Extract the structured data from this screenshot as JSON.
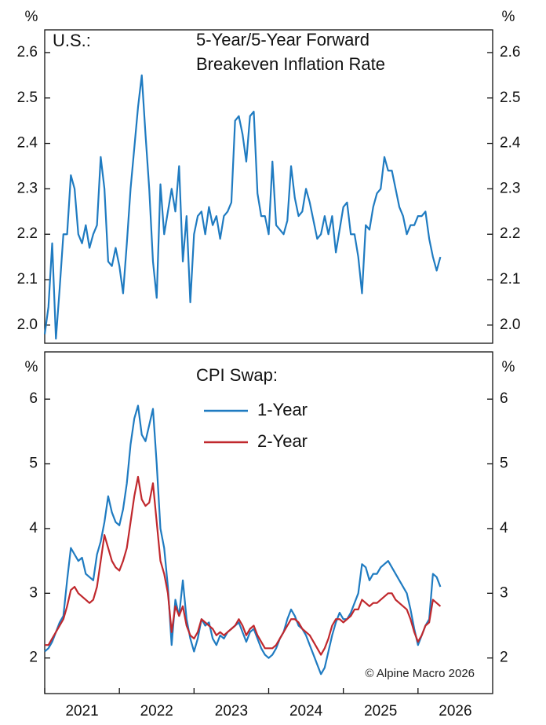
{
  "chart_data": [
    {
      "type": "line",
      "label": "U.S.:",
      "title": [
        "5-Year/5-Year Forward",
        "Breakeven Inflation Rate"
      ],
      "ylabel": "%",
      "y2label": "%",
      "xlim": [
        2021,
        2027
      ],
      "ylim": [
        1.96,
        2.65
      ],
      "yticks": [
        {
          "value": 2,
          "label": "2.0"
        },
        2.1,
        2.2,
        2.3,
        2.4,
        2.5,
        2.6
      ],
      "grid": false,
      "x": [
        2021,
        2021.05,
        2021.1,
        2021.15,
        2021.2,
        2021.25,
        2021.3,
        2021.35,
        2021.4,
        2021.45,
        2021.5,
        2021.55,
        2021.6,
        2021.65,
        2021.7,
        2021.75,
        2021.8,
        2021.85,
        2021.9,
        2021.95,
        2022,
        2022.05,
        2022.1,
        2022.15,
        2022.2,
        2022.25,
        2022.3,
        2022.35,
        2022.4,
        2022.45,
        2022.5,
        2022.55,
        2022.6,
        2022.65,
        2022.7,
        2022.75,
        2022.8,
        2022.85,
        2022.9,
        2022.95,
        2023,
        2023.05,
        2023.1,
        2023.15,
        2023.2,
        2023.25,
        2023.3,
        2023.35,
        2023.4,
        2023.45,
        2023.5,
        2023.55,
        2023.6,
        2023.65,
        2023.7,
        2023.75,
        2023.8,
        2023.85,
        2023.9,
        2023.95,
        2024,
        2024.05,
        2024.1,
        2024.15,
        2024.2,
        2024.25,
        2024.3,
        2024.35,
        2024.4,
        2024.45,
        2024.5,
        2024.55,
        2024.6,
        2024.65,
        2024.7,
        2024.75,
        2024.8,
        2024.85,
        2024.9,
        2024.95,
        2025,
        2025.05,
        2025.1,
        2025.15,
        2025.2,
        2025.25,
        2025.3,
        2025.35,
        2025.4,
        2025.45,
        2025.5,
        2025.55,
        2025.6,
        2025.65,
        2025.7,
        2025.75,
        2025.8,
        2025.85,
        2025.9,
        2025.95,
        2026,
        2026.05,
        2026.1,
        2026.15,
        2026.2,
        2026.25,
        2026.3
      ],
      "series": [
        {
          "name": "5-Year/5-Year Forward Breakeven Inflation Rate",
          "color": "#1f7bc1",
          "values": [
            1.98,
            2.04,
            2.18,
            1.97,
            2.08,
            2.2,
            2.2,
            2.33,
            2.3,
            2.2,
            2.18,
            2.22,
            2.17,
            2.2,
            2.22,
            2.37,
            2.3,
            2.14,
            2.13,
            2.17,
            2.13,
            2.07,
            2.18,
            2.3,
            2.39,
            2.48,
            2.55,
            2.42,
            2.3,
            2.14,
            2.06,
            2.31,
            2.2,
            2.25,
            2.3,
            2.25,
            2.35,
            2.14,
            2.24,
            2.05,
            2.2,
            2.24,
            2.25,
            2.2,
            2.26,
            2.22,
            2.24,
            2.19,
            2.24,
            2.25,
            2.27,
            2.45,
            2.46,
            2.42,
            2.36,
            2.46,
            2.47,
            2.29,
            2.24,
            2.24,
            2.2,
            2.36,
            2.22,
            2.21,
            2.2,
            2.23,
            2.35,
            2.28,
            2.24,
            2.25,
            2.3,
            2.27,
            2.23,
            2.19,
            2.2,
            2.24,
            2.2,
            2.24,
            2.16,
            2.21,
            2.26,
            2.27,
            2.2,
            2.2,
            2.15,
            2.07,
            2.22,
            2.21,
            2.26,
            2.29,
            2.3,
            2.37,
            2.34,
            2.34,
            2.3,
            2.26,
            2.24,
            2.2,
            2.22,
            2.22,
            2.24,
            2.24,
            2.25,
            2.19,
            2.15,
            2.12,
            2.15
          ]
        }
      ]
    },
    {
      "type": "line",
      "title": "CPI Swap:",
      "ylabel": "%",
      "y2label": "%",
      "annotation": "© Alpine Macro 2026",
      "xlim": [
        2021,
        2027
      ],
      "ylim": [
        1.45,
        6.73
      ],
      "xticks": [
        2021,
        2022,
        2023,
        2024,
        2025,
        2026
      ],
      "yticks": [
        2,
        3,
        4,
        5,
        6
      ],
      "grid": false,
      "x": [
        2021,
        2021.05,
        2021.1,
        2021.15,
        2021.2,
        2021.25,
        2021.3,
        2021.35,
        2021.4,
        2021.45,
        2021.5,
        2021.55,
        2021.6,
        2021.65,
        2021.7,
        2021.75,
        2021.8,
        2021.85,
        2021.9,
        2021.95,
        2022,
        2022.05,
        2022.1,
        2022.15,
        2022.2,
        2022.25,
        2022.3,
        2022.35,
        2022.4,
        2022.45,
        2022.5,
        2022.55,
        2022.6,
        2022.65,
        2022.7,
        2022.75,
        2022.8,
        2022.85,
        2022.9,
        2022.95,
        2023,
        2023.05,
        2023.1,
        2023.15,
        2023.2,
        2023.25,
        2023.3,
        2023.35,
        2023.4,
        2023.45,
        2023.5,
        2023.55,
        2023.6,
        2023.65,
        2023.7,
        2023.75,
        2023.8,
        2023.85,
        2023.9,
        2023.95,
        2024,
        2024.05,
        2024.1,
        2024.15,
        2024.2,
        2024.25,
        2024.3,
        2024.35,
        2024.4,
        2024.45,
        2024.5,
        2024.55,
        2024.6,
        2024.65,
        2024.7,
        2024.75,
        2024.8,
        2024.85,
        2024.9,
        2024.95,
        2025,
        2025.05,
        2025.1,
        2025.15,
        2025.2,
        2025.25,
        2025.3,
        2025.35,
        2025.4,
        2025.45,
        2025.5,
        2025.55,
        2025.6,
        2025.65,
        2025.7,
        2025.75,
        2025.8,
        2025.85,
        2025.9,
        2025.95,
        2026,
        2026.05,
        2026.1,
        2026.15,
        2026.2,
        2026.25,
        2026.3
      ],
      "series": [
        {
          "name": "1-Year",
          "color": "#1f7bc1",
          "values": [
            2.1,
            2.15,
            2.25,
            2.4,
            2.55,
            2.65,
            3.2,
            3.7,
            3.6,
            3.5,
            3.55,
            3.3,
            3.25,
            3.2,
            3.6,
            3.8,
            4.1,
            4.5,
            4.25,
            4.1,
            4.05,
            4.3,
            4.7,
            5.3,
            5.7,
            5.9,
            5.45,
            5.35,
            5.6,
            5.85,
            5.0,
            4.0,
            3.7,
            3.1,
            2.2,
            2.9,
            2.65,
            3.2,
            2.6,
            2.3,
            2.1,
            2.3,
            2.6,
            2.5,
            2.55,
            2.3,
            2.2,
            2.35,
            2.3,
            2.4,
            2.45,
            2.5,
            2.55,
            2.4,
            2.25,
            2.4,
            2.45,
            2.3,
            2.15,
            2.05,
            2.0,
            2.05,
            2.15,
            2.3,
            2.4,
            2.6,
            2.75,
            2.65,
            2.5,
            2.45,
            2.35,
            2.2,
            2.05,
            1.9,
            1.75,
            1.85,
            2.1,
            2.35,
            2.55,
            2.7,
            2.6,
            2.6,
            2.7,
            2.85,
            3.0,
            3.45,
            3.4,
            3.2,
            3.3,
            3.3,
            3.4,
            3.45,
            3.5,
            3.4,
            3.3,
            3.2,
            3.1,
            3.0,
            2.75,
            2.45,
            2.2,
            2.35,
            2.5,
            2.6,
            3.3,
            3.25,
            3.1
          ]
        },
        {
          "name": "2-Year",
          "color": "#c0282d",
          "values": [
            2.2,
            2.2,
            2.3,
            2.4,
            2.5,
            2.6,
            2.8,
            3.05,
            3.1,
            3.0,
            2.95,
            2.9,
            2.85,
            2.9,
            3.1,
            3.5,
            3.9,
            3.7,
            3.5,
            3.4,
            3.35,
            3.5,
            3.7,
            4.1,
            4.5,
            4.8,
            4.45,
            4.35,
            4.4,
            4.7,
            4.1,
            3.5,
            3.3,
            3.0,
            2.4,
            2.8,
            2.65,
            2.8,
            2.5,
            2.35,
            2.3,
            2.4,
            2.6,
            2.55,
            2.5,
            2.45,
            2.35,
            2.4,
            2.35,
            2.4,
            2.45,
            2.5,
            2.6,
            2.5,
            2.35,
            2.45,
            2.5,
            2.35,
            2.25,
            2.15,
            2.15,
            2.15,
            2.2,
            2.3,
            2.4,
            2.5,
            2.6,
            2.6,
            2.55,
            2.45,
            2.4,
            2.35,
            2.25,
            2.15,
            2.05,
            2.15,
            2.3,
            2.5,
            2.6,
            2.6,
            2.55,
            2.6,
            2.65,
            2.75,
            2.75,
            2.9,
            2.85,
            2.8,
            2.85,
            2.85,
            2.9,
            2.95,
            3.0,
            3.0,
            2.9,
            2.85,
            2.8,
            2.75,
            2.6,
            2.4,
            2.25,
            2.35,
            2.5,
            2.55,
            2.9,
            2.85,
            2.8
          ]
        }
      ]
    }
  ]
}
